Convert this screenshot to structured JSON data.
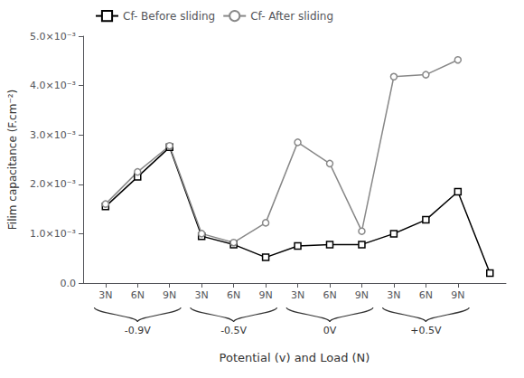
{
  "chart_data": {
    "type": "line",
    "x": [
      1,
      2,
      3,
      4,
      5,
      6,
      7,
      8,
      9,
      10,
      11,
      12,
      13
    ],
    "series": [
      {
        "name": "Cf- Before sliding",
        "color": "#000000",
        "marker": "square",
        "values": [
          0.00155,
          0.00215,
          0.00275,
          0.00095,
          0.00078,
          0.00052,
          0.00075,
          0.00078,
          0.00078,
          0.001,
          0.00128,
          0.00185,
          0.0002
        ]
      },
      {
        "name": "Cf- After sliding",
        "color": "#888888",
        "marker": "circle",
        "values": [
          0.0016,
          0.00225,
          0.00278,
          0.001,
          0.00082,
          0.00122,
          0.00285,
          0.00242,
          0.00105,
          0.00418,
          0.00422,
          0.00452,
          null
        ]
      }
    ],
    "xlabel": "Potential (v) and Load (N)",
    "ylabel": "Filim capacitance (F.cm⁻²)",
    "xlim": [
      0.3,
      13.5
    ],
    "xticks": [
      {
        "value": 1,
        "label": "3N"
      },
      {
        "value": 2,
        "label": "6N"
      },
      {
        "value": 3,
        "label": "9N"
      },
      {
        "value": 4,
        "label": "3N"
      },
      {
        "value": 5,
        "label": "6N"
      },
      {
        "value": 6,
        "label": "9N"
      },
      {
        "value": 7,
        "label": "3N"
      },
      {
        "value": 8,
        "label": "6N"
      },
      {
        "value": 9,
        "label": "9N"
      },
      {
        "value": 10,
        "label": "3N"
      },
      {
        "value": 11,
        "label": "6N"
      },
      {
        "value": 12,
        "label": "9N"
      }
    ],
    "ylim": [
      0.0,
      0.005
    ],
    "yticks": [
      {
        "value": 0.0,
        "label": "0.0"
      },
      {
        "value": 0.001,
        "label": "1.0×10⁻³"
      },
      {
        "value": 0.002,
        "label": "2.0×10⁻³"
      },
      {
        "value": 0.003,
        "label": "3.0×10⁻³"
      },
      {
        "value": 0.004,
        "label": "4.0×10⁻³"
      },
      {
        "value": 0.005,
        "label": "5.0×10⁻³"
      }
    ],
    "annotations": [
      {
        "text": "-0.9V",
        "x": 2.0,
        "x_start": 0.65,
        "x_end": 3.35
      },
      {
        "text": "-0.5V",
        "x": 5.0,
        "x_start": 3.65,
        "x_end": 6.35
      },
      {
        "text": "0V",
        "x": 8.0,
        "x_start": 6.65,
        "x_end": 9.35
      },
      {
        "text": "+0.5V",
        "x": 11.0,
        "x_start": 9.65,
        "x_end": 12.35
      }
    ],
    "legend": "upper left",
    "grid": false
  }
}
